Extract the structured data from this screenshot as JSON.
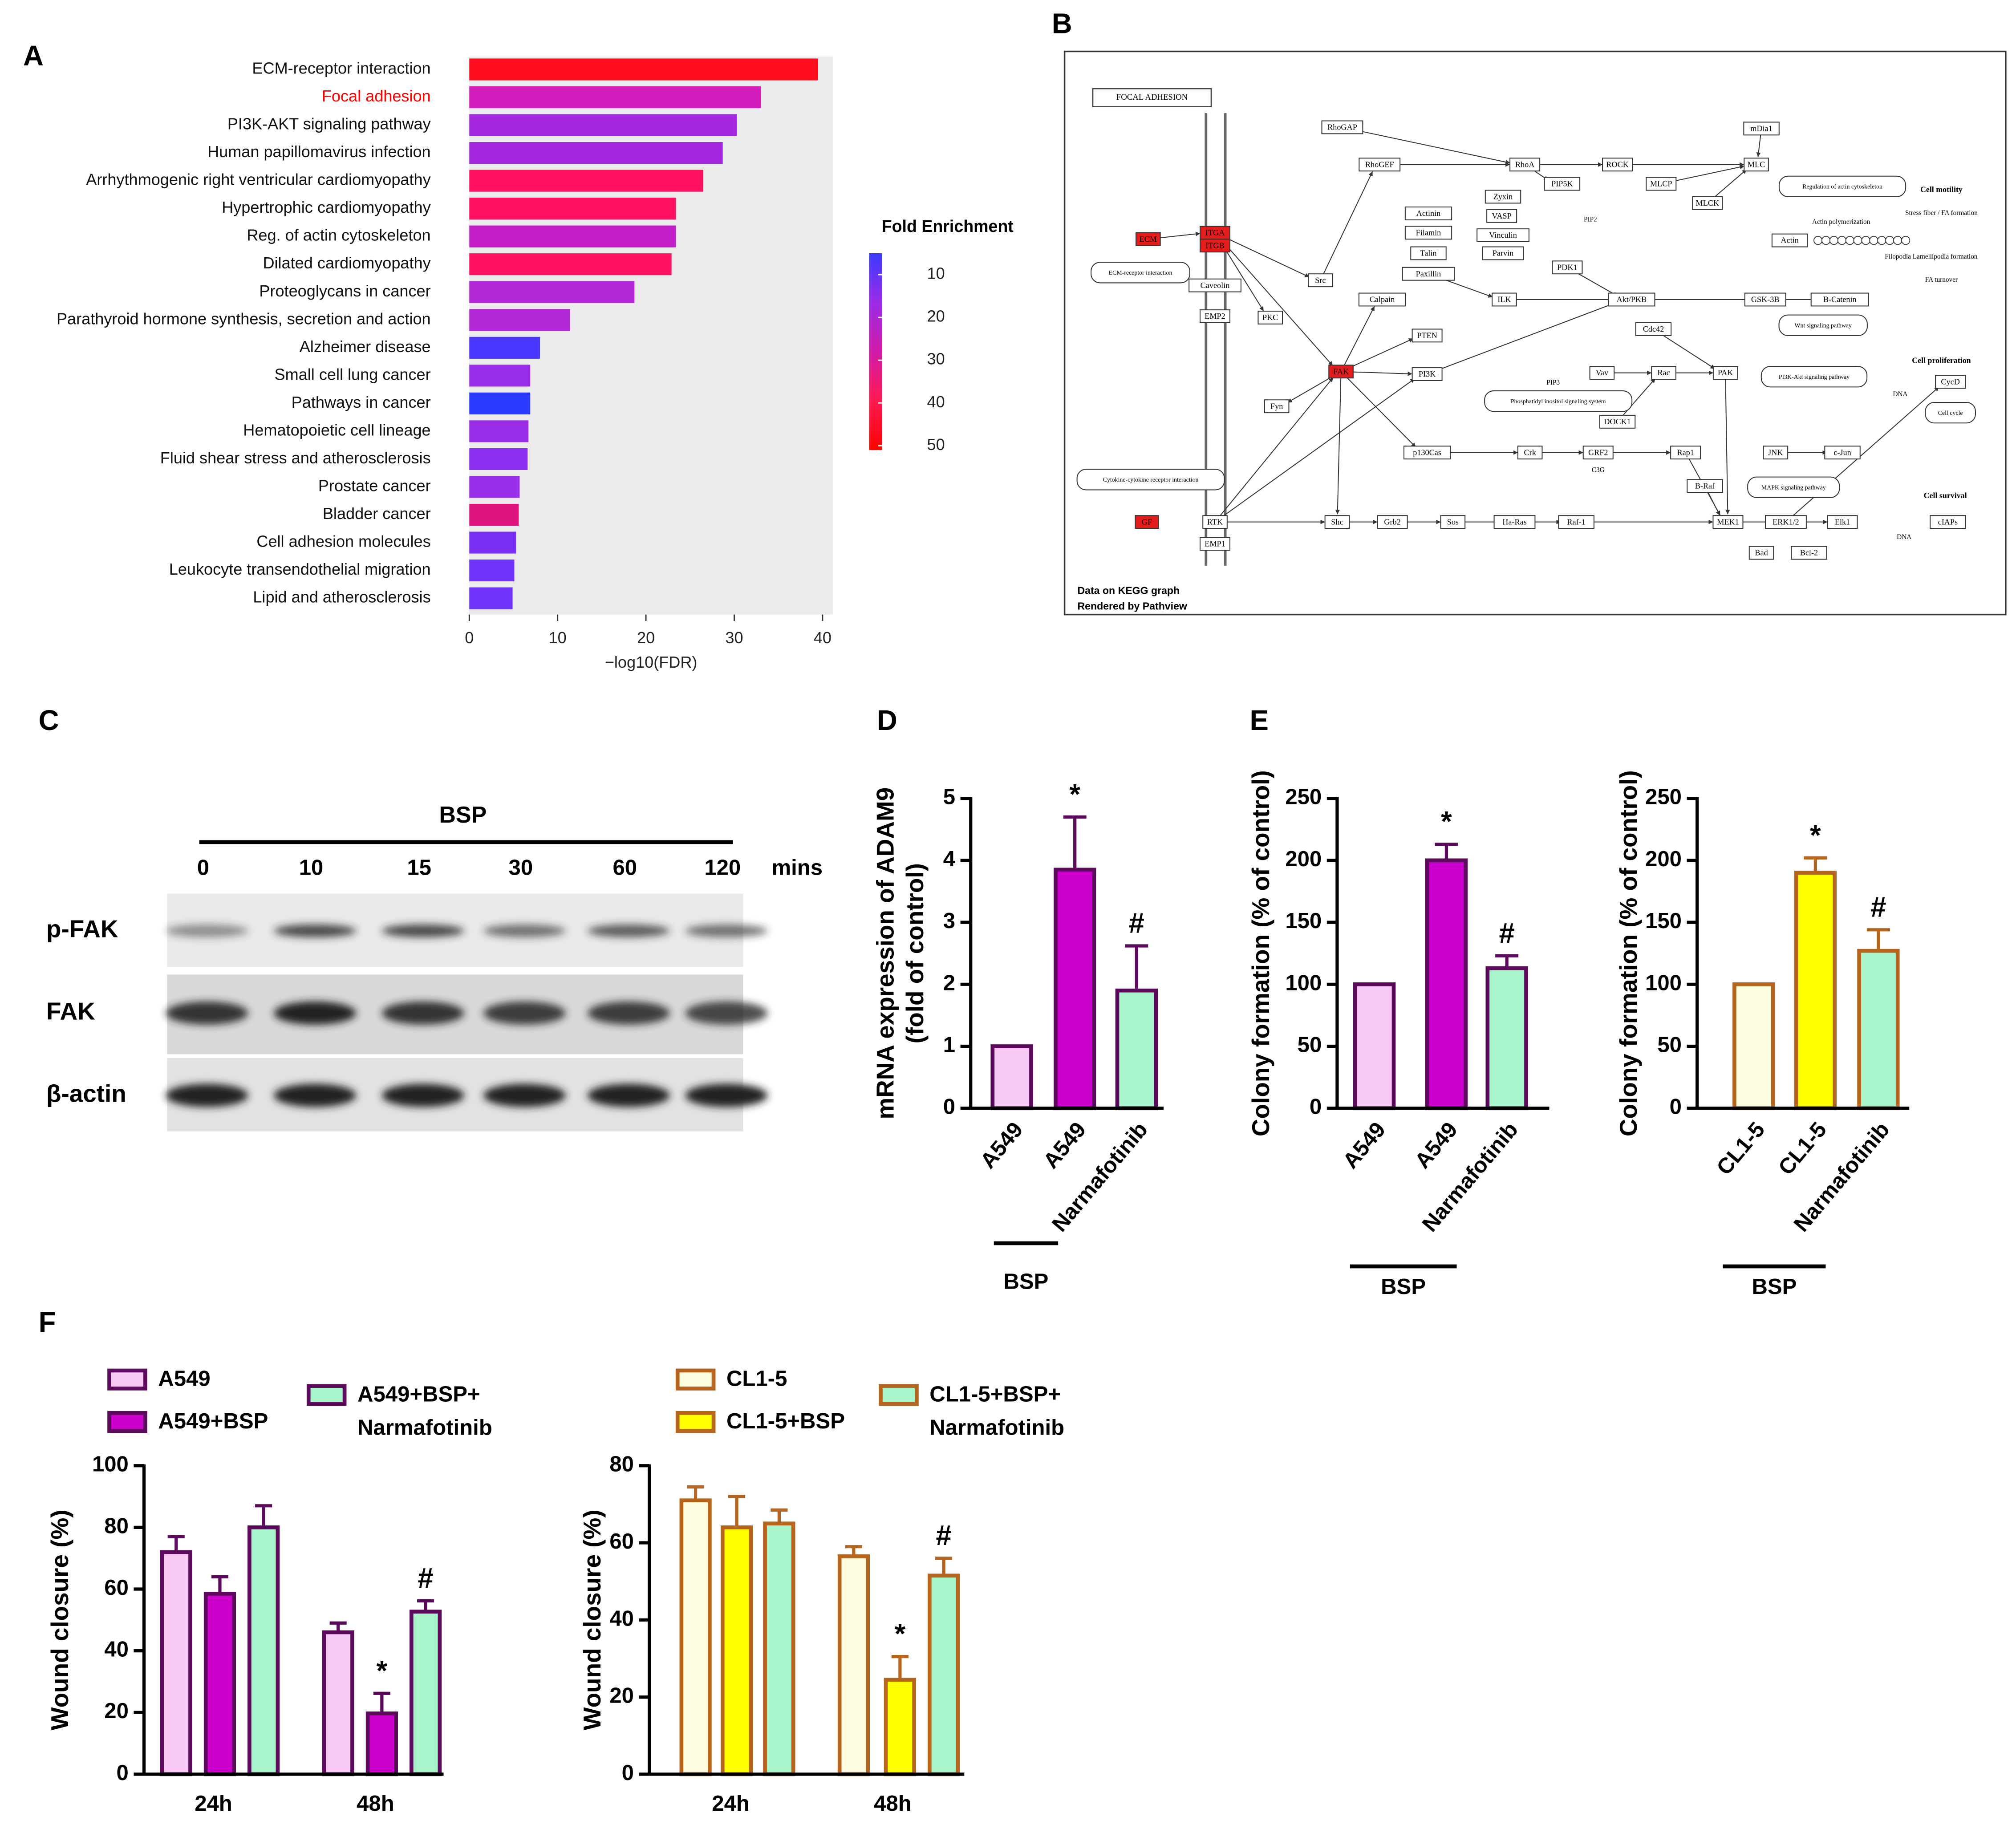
{
  "panels": [
    "A",
    "B",
    "C",
    "D",
    "E",
    "F"
  ],
  "chart_data": [
    {
      "type": "barh",
      "xlabel": "−log10(FDR)",
      "categories": [
        "ECM-receptor interaction",
        "Focal adhesion",
        "PI3K-AKT signaling pathway",
        "Human papillomavirus infection",
        "Arrhythmogenic right ventricular cardiomyopathy",
        "Hypertrophic cardiomyopathy",
        "Reg. of actin cytoskeleton",
        "Dilated cardiomyopathy",
        "Proteoglycans in cancer",
        "Parathyroid hormone synthesis, secretion and action",
        "Alzheimer disease",
        "Small cell lung cancer",
        "Pathways in cancer",
        "Hematopoietic cell lineage",
        "Fluid shear stress and atherosclerosis",
        "Prostate cancer",
        "Bladder cancer",
        "Cell adhesion molecules",
        "Leukocyte transendothelial migration",
        "Lipid and atherosclerosis"
      ],
      "values": [
        39.5,
        33,
        30.3,
        28.7,
        26.5,
        23.4,
        23.4,
        22.9,
        18.7,
        11.4,
        8,
        6.9,
        6.9,
        6.7,
        6.6,
        5.7,
        5.6,
        5.3,
        5.1,
        4.9
      ],
      "colors": [
        "#ff0d1f",
        "#d21cbb",
        "#a427e0",
        "#a427e0",
        "#ff1060",
        "#ff1060",
        "#c21fc8",
        "#ff1060",
        "#b126d5",
        "#b126d5",
        "#4a37ff",
        "#9a2de8",
        "#2b3aff",
        "#9a2de8",
        "#8a2ef0",
        "#9a2de8",
        "#e0147f",
        "#7a30f5",
        "#6e32f8",
        "#6e32f8"
      ],
      "highlight_index": 1,
      "highlight_color": "#ff0000",
      "background": "#ebebeb",
      "xlim": [
        0,
        41.2
      ],
      "xticks": [
        0,
        10,
        20,
        30,
        40
      ],
      "colorbar": {
        "title": "Fold Enrichment",
        "clim": [
          5,
          51
        ],
        "ticks": [
          10,
          20,
          30,
          40,
          50
        ],
        "colors": [
          "#3a3aff",
          "#9b2be6",
          "#d01aa8",
          "#ff1a50",
          "#ff0000"
        ]
      }
    },
    {
      "type": "bar",
      "ylabel": [
        "mRNA expression of ADAM9",
        "(fold of control)"
      ],
      "categories": [
        "A549",
        "A549",
        "Narmafotinib"
      ],
      "values": [
        1,
        3.85,
        1.9
      ],
      "errors": [
        0,
        0.85,
        0.72
      ],
      "colors": [
        "#f9c9f5",
        "#cc00cc",
        "#a8f5cc"
      ],
      "edgecolor": "#5c0a5c",
      "ylim": [
        0,
        5
      ],
      "yticks": [
        0,
        1,
        2,
        3,
        4,
        5
      ],
      "annotations": [
        {
          "index": 1,
          "text": "*"
        },
        {
          "index": 2,
          "text": "#"
        }
      ],
      "group": {
        "label": "BSP",
        "from": 1,
        "to": 2
      }
    },
    {
      "type": "bar",
      "ylabel": [
        "Colony formation (% of control)"
      ],
      "categories": [
        "A549",
        "A549",
        "Narmafotinib"
      ],
      "values": [
        100,
        200,
        113
      ],
      "errors": [
        0,
        13,
        10
      ],
      "colors": [
        "#f9c9f5",
        "#cc00cc",
        "#a8f5cc"
      ],
      "edgecolor": "#5c0a5c",
      "ylim": [
        0,
        250
      ],
      "yticks": [
        0,
        50,
        100,
        150,
        200,
        250
      ],
      "annotations": [
        {
          "index": 1,
          "text": "*"
        },
        {
          "index": 2,
          "text": "#"
        }
      ],
      "group": {
        "label": "BSP",
        "from": 1,
        "to": 2
      }
    },
    {
      "type": "bar",
      "ylabel": [
        "Colony formation (% of control)"
      ],
      "categories": [
        "CL1-5",
        "CL1-5",
        "Narmafotinib"
      ],
      "values": [
        100,
        190,
        127
      ],
      "errors": [
        0,
        12,
        17
      ],
      "colors": [
        "#fffde0",
        "#ffff00",
        "#a8f5cc"
      ],
      "edgecolor": "#b5651d",
      "ylim": [
        0,
        250
      ],
      "yticks": [
        0,
        50,
        100,
        150,
        200,
        250
      ],
      "annotations": [
        {
          "index": 1,
          "text": "*"
        },
        {
          "index": 2,
          "text": "#"
        }
      ],
      "group": {
        "label": "BSP",
        "from": 1,
        "to": 2
      }
    },
    {
      "type": "groupbar",
      "ylabel": [
        "Wound closure (%)"
      ],
      "categories": [
        "24h",
        "48h"
      ],
      "series": [
        {
          "name": "A549",
          "color": "#f9c9f5",
          "edgecolor": "#5c0a5c",
          "values": [
            72,
            46
          ],
          "errors": [
            5,
            3
          ]
        },
        {
          "name": "A549+BSP",
          "color": "#cc00cc",
          "edgecolor": "#5c0a5c",
          "values": [
            58.5,
            19.7
          ],
          "errors": [
            5.5,
            6.5
          ]
        },
        {
          "name": "A549+BSP+ Narmafotinib",
          "color": "#a8f5cc",
          "edgecolor": "#5c0a5c",
          "values": [
            80,
            52.7
          ],
          "errors": [
            7,
            3.5
          ]
        }
      ],
      "ylim": [
        0,
        100
      ],
      "yticks": [
        0,
        20,
        40,
        60,
        80,
        100
      ],
      "annotations": [
        {
          "series": 1,
          "index": 1,
          "text": "*"
        },
        {
          "series": 2,
          "index": 1,
          "text": "#"
        }
      ]
    },
    {
      "type": "groupbar",
      "ylabel": [
        "Wound closure (%)"
      ],
      "categories": [
        "24h",
        "48h"
      ],
      "series": [
        {
          "name": "CL1-5",
          "color": "#fffde0",
          "edgecolor": "#b5651d",
          "values": [
            71,
            56.5
          ],
          "errors": [
            3.5,
            2.5
          ]
        },
        {
          "name": "CL1-5+BSP",
          "color": "#ffff00",
          "edgecolor": "#b5651d",
          "values": [
            64,
            24.5
          ],
          "errors": [
            8,
            6
          ]
        },
        {
          "name": "CL1-5+BSP+ Narmafotinib",
          "color": "#a8f5cc",
          "edgecolor": "#b5651d",
          "values": [
            65,
            51.5
          ],
          "errors": [
            3.5,
            4.5
          ]
        }
      ],
      "ylim": [
        0,
        80
      ],
      "yticks": [
        0,
        20,
        40,
        60,
        80
      ],
      "annotations": [
        {
          "series": 1,
          "index": 1,
          "text": "*"
        },
        {
          "series": 2,
          "index": 1,
          "text": "#"
        }
      ]
    }
  ],
  "blot": {
    "treatment": "BSP",
    "times": [
      "0",
      "10",
      "15",
      "30",
      "60",
      "120"
    ],
    "unit": "mins",
    "rows": [
      "p-FAK",
      "FAK",
      "β-actin"
    ]
  },
  "pathway": {
    "nodes": [
      {
        "label": "FOCAL ADHESION",
        "kind": "title"
      },
      {
        "label": "ECM",
        "kind": "red"
      },
      {
        "label": "ITGA",
        "kind": "red"
      },
      {
        "label": "ITGB",
        "kind": "red"
      },
      {
        "label": "ECM-receptor interaction",
        "kind": "round"
      },
      {
        "label": "Caveolin",
        "kind": "gene"
      },
      {
        "label": "EMP2",
        "kind": "gene"
      },
      {
        "label": "PKC",
        "kind": "gene"
      },
      {
        "label": "Src",
        "kind": "gene"
      },
      {
        "label": "FAK",
        "kind": "red"
      },
      {
        "label": "Fyn",
        "kind": "gene"
      },
      {
        "label": "GF",
        "kind": "red"
      },
      {
        "label": "RTK",
        "kind": "gene"
      },
      {
        "label": "EMP1",
        "kind": "gene"
      },
      {
        "label": "Cytokine-cytokine receptor interaction",
        "kind": "round"
      },
      {
        "label": "Shc",
        "kind": "gene"
      },
      {
        "label": "Grb2",
        "kind": "gene"
      },
      {
        "label": "Sos",
        "kind": "gene"
      },
      {
        "label": "Ha-Ras",
        "kind": "gene"
      },
      {
        "label": "Raf-1",
        "kind": "gene"
      },
      {
        "label": "MEK1",
        "kind": "gene"
      },
      {
        "label": "ERK1/2",
        "kind": "gene"
      },
      {
        "label": "Elk1",
        "kind": "gene"
      },
      {
        "label": "cIAPs",
        "kind": "gene"
      },
      {
        "label": "RhoGAP",
        "kind": "gene"
      },
      {
        "label": "RhoGEF",
        "kind": "gene"
      },
      {
        "label": "RhoA",
        "kind": "gene"
      },
      {
        "label": "ROCK",
        "kind": "gene"
      },
      {
        "label": "MLC",
        "kind": "gene"
      },
      {
        "label": "mDia1",
        "kind": "gene"
      },
      {
        "label": "PIP5K",
        "kind": "gene"
      },
      {
        "label": "MLCP",
        "kind": "gene"
      },
      {
        "label": "MLCK",
        "kind": "gene"
      },
      {
        "label": "Actinin",
        "kind": "gene"
      },
      {
        "label": "Zyxin",
        "kind": "gene"
      },
      {
        "label": "VASP",
        "kind": "gene"
      },
      {
        "label": "Vinculin",
        "kind": "gene"
      },
      {
        "label": "Filamin",
        "kind": "gene"
      },
      {
        "label": "Talin",
        "kind": "gene"
      },
      {
        "label": "Parvin",
        "kind": "gene"
      },
      {
        "label": "Paxillin",
        "kind": "gene"
      },
      {
        "label": "Calpain",
        "kind": "gene"
      },
      {
        "label": "ILK",
        "kind": "gene"
      },
      {
        "label": "PDK1",
        "kind": "gene"
      },
      {
        "label": "Akt/PKB",
        "kind": "gene"
      },
      {
        "label": "GSK-3B",
        "kind": "gene"
      },
      {
        "label": "B-Catenin",
        "kind": "gene"
      },
      {
        "label": "PTEN",
        "kind": "gene"
      },
      {
        "label": "PI3K",
        "kind": "gene"
      },
      {
        "label": "Vav",
        "kind": "gene"
      },
      {
        "label": "Rac",
        "kind": "gene"
      },
      {
        "label": "PAK",
        "kind": "gene"
      },
      {
        "label": "Cdc42",
        "kind": "gene"
      },
      {
        "label": "DOCK1",
        "kind": "gene"
      },
      {
        "label": "p130Cas",
        "kind": "gene"
      },
      {
        "label": "Crk",
        "kind": "gene"
      },
      {
        "label": "GRF2",
        "kind": "gene"
      },
      {
        "label": "Rap1",
        "kind": "gene"
      },
      {
        "label": "JNK",
        "kind": "gene"
      },
      {
        "label": "c-Jun",
        "kind": "gene"
      },
      {
        "label": "B-Raf",
        "kind": "gene"
      },
      {
        "label": "Bad",
        "kind": "gene"
      },
      {
        "label": "Bcl-2",
        "kind": "gene"
      },
      {
        "label": "CycD",
        "kind": "gene"
      },
      {
        "label": "Actin",
        "kind": "gene"
      },
      {
        "label": "Regulation of actin cytoskeleton",
        "kind": "round"
      },
      {
        "label": "Wnt signaling pathway",
        "kind": "round"
      },
      {
        "label": "PI3K-Akt signaling pathway",
        "kind": "round"
      },
      {
        "label": "Cell cycle",
        "kind": "round"
      },
      {
        "label": "Phosphatidyl inositol signaling system",
        "kind": "round"
      },
      {
        "label": "MAPK signaling pathway",
        "kind": "round"
      },
      {
        "label": "Cell motility",
        "kind": "bold"
      },
      {
        "label": "Stress fiber / FA formation",
        "kind": "note"
      },
      {
        "label": "Actin polymerization",
        "kind": "note"
      },
      {
        "label": "Filopodia Lamellipodia formation",
        "kind": "note"
      },
      {
        "label": "FA turnover",
        "kind": "note"
      },
      {
        "label": "Cell proliferation",
        "kind": "bold"
      },
      {
        "label": "Cell survival",
        "kind": "bold"
      },
      {
        "label": "DNA",
        "kind": "note"
      },
      {
        "label": "DNA",
        "kind": "note"
      },
      {
        "label": "PIP2",
        "kind": "note"
      },
      {
        "label": "PIP3",
        "kind": "note"
      },
      {
        "label": "C3G",
        "kind": "note"
      },
      {
        "label": "Data on KEGG graph",
        "kind": "footer"
      },
      {
        "label": "Rendered by Pathview",
        "kind": "footer"
      }
    ]
  }
}
